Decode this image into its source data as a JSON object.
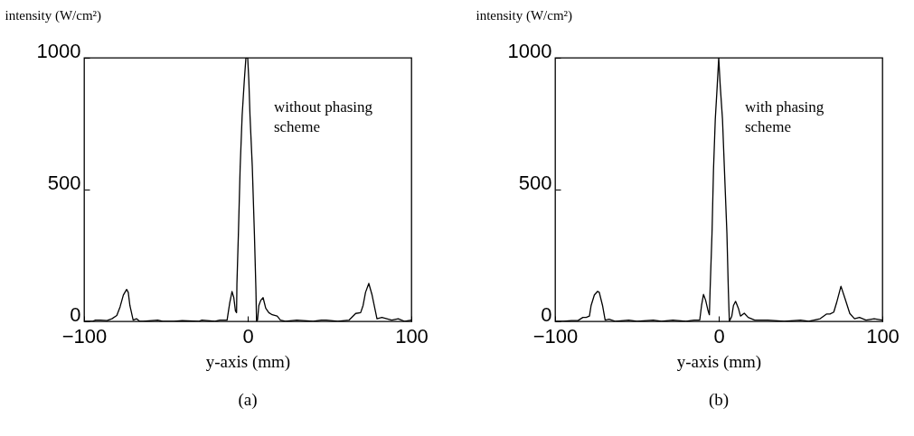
{
  "chart_data": [
    {
      "type": "line",
      "xlabel": "y-axis (mm)",
      "ylabel": "intensity (W/cm²)",
      "annotations": [
        "without phasing scheme",
        "(a)"
      ],
      "xlim": [
        -100,
        100
      ],
      "ylim": [
        0,
        1000
      ],
      "xticks": [
        -100,
        0,
        100
      ],
      "yticks": [
        0,
        500,
        1000
      ],
      "grid": false,
      "x": [
        -100,
        -95,
        -93,
        -90,
        -86,
        -83,
        -80,
        -78,
        -76,
        -74,
        -73,
        -72,
        -70,
        -68,
        -66,
        -64,
        -55,
        -52,
        -45,
        -40,
        -30,
        -28,
        -20,
        -17,
        -15,
        -12.6,
        -11,
        -9.6,
        -8.5,
        -7.5,
        -6.8,
        -6.6,
        -5.7,
        -4.6,
        -3.4,
        -2.1,
        -1.1,
        0,
        0.7,
        1.4,
        2.8,
        4.1,
        5,
        5.4,
        6,
        6.8,
        8,
        9.4,
        11,
        12.9,
        15,
        18,
        20,
        23,
        30,
        40,
        45,
        48,
        55,
        62,
        66,
        69,
        70.5,
        72,
        74,
        76,
        78,
        79,
        82,
        85,
        88,
        92,
        96,
        100
      ],
      "series": [
        {
          "color": "#000000",
          "values": [
            0,
            0,
            5,
            5,
            3,
            10,
            22,
            55,
            100,
            121,
            110,
            60,
            5,
            10,
            0,
            0,
            5,
            0,
            0,
            3,
            0,
            5,
            0,
            5,
            5,
            5,
            70,
            113,
            90,
            40,
            33,
            140,
            330,
            587,
            781,
            912,
            1000,
            1000,
            912,
            781,
            587,
            330,
            124,
            0,
            5,
            60,
            80,
            90,
            50,
            33,
            25,
            20,
            5,
            0,
            5,
            0,
            5,
            5,
            0,
            5,
            30,
            33,
            60,
            110,
            144,
            100,
            40,
            10,
            15,
            10,
            5,
            10,
            0,
            5
          ]
        }
      ]
    },
    {
      "type": "line",
      "xlabel": "y-axis (mm)",
      "ylabel": "intensity (W/cm²)",
      "annotations": [
        "with phasing scheme",
        "(b)"
      ],
      "xlim": [
        -100,
        100
      ],
      "ylim": [
        0,
        1000
      ],
      "xticks": [
        -100,
        0,
        100
      ],
      "yticks": [
        0,
        500,
        1000
      ],
      "grid": false,
      "x": [
        -100,
        -95,
        -90,
        -86,
        -83,
        -81,
        -79,
        -78,
        -76,
        -74,
        -73,
        -71,
        -69.4,
        -67,
        -63,
        -55,
        -50,
        -40,
        -35,
        -28,
        -20,
        -15,
        -11.6,
        -10.5,
        -9.3,
        -8,
        -6.5,
        -5.7,
        -5.3,
        -4.1,
        -3.2,
        -2.1,
        -0.9,
        0,
        0.9,
        2.3,
        3.5,
        5,
        5.9,
        6.5,
        8,
        9,
        10.3,
        12,
        13.3,
        15.6,
        18,
        22,
        30,
        40,
        50,
        55,
        62,
        66,
        68,
        70.3,
        72,
        74.7,
        77,
        80.1,
        83,
        86,
        90,
        95,
        100
      ],
      "series": [
        {
          "color": "#000000",
          "values": [
            0,
            0,
            3,
            3,
            15,
            15,
            20,
            60,
            100,
            114,
            110,
            60,
            5,
            8,
            0,
            5,
            0,
            5,
            0,
            5,
            0,
            5,
            5,
            60,
            102,
            80,
            40,
            25,
            114,
            335,
            574,
            767,
            896,
            1000,
            896,
            767,
            574,
            335,
            114,
            0,
            20,
            60,
            76,
            50,
            20,
            31,
            15,
            5,
            5,
            0,
            5,
            0,
            10,
            28,
            28,
            35,
            70,
            133,
            90,
            30,
            10,
            15,
            5,
            10,
            5
          ]
        }
      ]
    }
  ]
}
